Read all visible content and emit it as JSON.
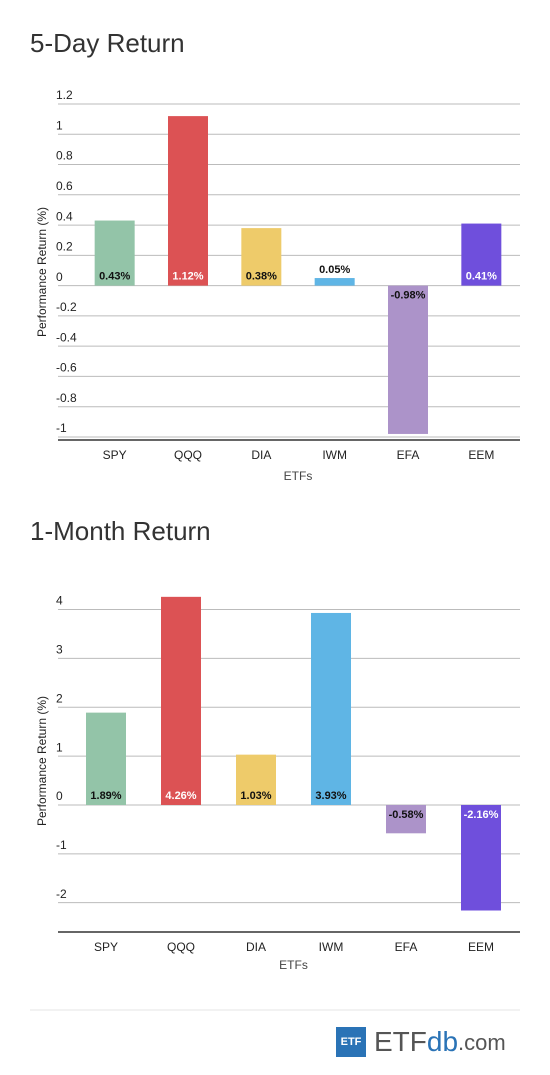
{
  "chart_data": [
    {
      "type": "bar",
      "title": "5-Day Return",
      "x_label": "ETFs",
      "y_label": "Performance Return (%)",
      "categories": [
        "SPY",
        "QQQ",
        "DIA",
        "IWM",
        "EFA",
        "EEM"
      ],
      "values": [
        0.43,
        1.12,
        0.38,
        0.05,
        -0.98,
        0.41
      ],
      "value_labels": [
        "0.43%",
        "1.12%",
        "0.38%",
        "0.05%",
        "-0.98%",
        "0.41%"
      ],
      "colors": [
        "#93c4a8",
        "#dc5254",
        "#eecb6a",
        "#5fb5e5",
        "#ac93c9",
        "#6f4fdc"
      ],
      "ylim": [
        -1.02,
        1.2
      ],
      "yticks": [
        1.2,
        1,
        0.8,
        0.6,
        0.4,
        0.2,
        0,
        -0.2,
        -0.4,
        -0.6,
        -0.8,
        -1
      ],
      "grid": true
    },
    {
      "type": "bar",
      "title": "1-Month Return",
      "x_label": "ETFs",
      "y_label": "Performance Return (%)",
      "categories": [
        "SPY",
        "QQQ",
        "DIA",
        "IWM",
        "EFA",
        "EEM"
      ],
      "values": [
        1.89,
        4.26,
        1.03,
        3.93,
        -0.58,
        -2.16
      ],
      "value_labels": [
        "1.89%",
        "4.26%",
        "1.03%",
        "3.93%",
        "-0.58%",
        "-2.16%"
      ],
      "colors": [
        "#93c4a8",
        "#dc5254",
        "#eecb6a",
        "#5fb5e5",
        "#ac93c9",
        "#6f4fdc"
      ],
      "ylim": [
        -2.6,
        4.4
      ],
      "yticks": [
        4,
        3,
        2,
        1,
        0,
        -1,
        -2
      ],
      "grid": true
    }
  ],
  "logo": {
    "badge": "ETF",
    "name": "ETF",
    "name2": "db",
    "name3": ".com"
  }
}
